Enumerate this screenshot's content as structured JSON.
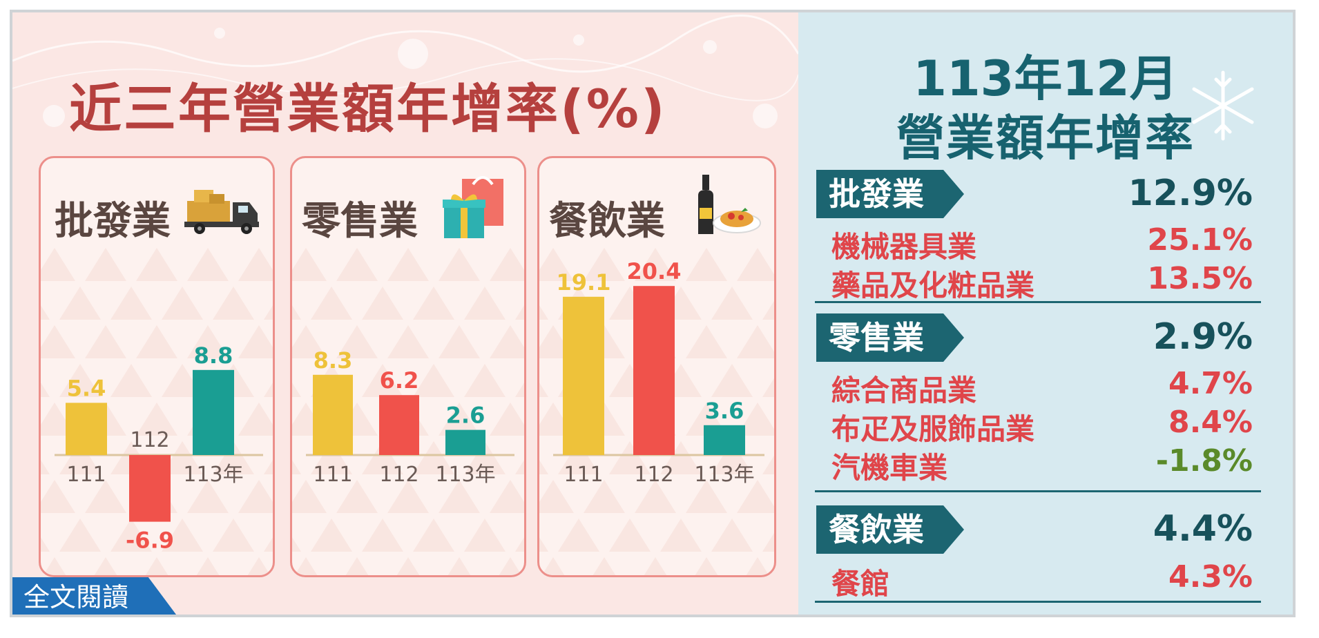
{
  "title": "近三年營業額年增率(%)",
  "read_button": "全文閱讀",
  "chart_data": [
    {
      "type": "bar",
      "title": "批發業",
      "categories": [
        "111",
        "112",
        "113年"
      ],
      "values": [
        5.4,
        -6.9,
        8.8
      ],
      "colors": [
        "#eec23a",
        "#f0524b",
        "#1a9e93"
      ]
    },
    {
      "type": "bar",
      "title": "零售業",
      "categories": [
        "111",
        "112",
        "113年"
      ],
      "values": [
        8.3,
        6.2,
        2.6
      ],
      "colors": [
        "#eec23a",
        "#f0524b",
        "#1a9e93"
      ]
    },
    {
      "type": "bar",
      "title": "餐飲業",
      "categories": [
        "111",
        "112",
        "113年"
      ],
      "values": [
        19.1,
        20.4,
        3.6
      ],
      "colors": [
        "#eec23a",
        "#f0524b",
        "#1a9e93"
      ]
    }
  ],
  "summary": {
    "title_line1": "113年12月",
    "title_line2": "營業額年增率",
    "sections": [
      {
        "name": "批發業",
        "value": "12.9%",
        "items": [
          {
            "name": "機械器具業",
            "value": "25.1%"
          },
          {
            "name": "藥品及化粧品業",
            "value": "13.5%"
          }
        ]
      },
      {
        "name": "零售業",
        "value": "2.9%",
        "items": [
          {
            "name": "綜合商品業",
            "value": "4.7%"
          },
          {
            "name": "布疋及服飾品業",
            "value": "8.4%"
          },
          {
            "name": "汽機車業",
            "value": "-1.8%"
          }
        ]
      },
      {
        "name": "餐飲業",
        "value": "4.4%",
        "items": [
          {
            "name": "餐館",
            "value": "4.3%"
          }
        ]
      }
    ]
  },
  "colors": {
    "positive_value": "#e0454a",
    "negative_value": "#5a8a2a",
    "accent": "#1c6571"
  },
  "icons": [
    "delivery-truck-icon",
    "shopping-bag-gift-icon",
    "wine-pasta-icon",
    "snowflake-icon"
  ]
}
